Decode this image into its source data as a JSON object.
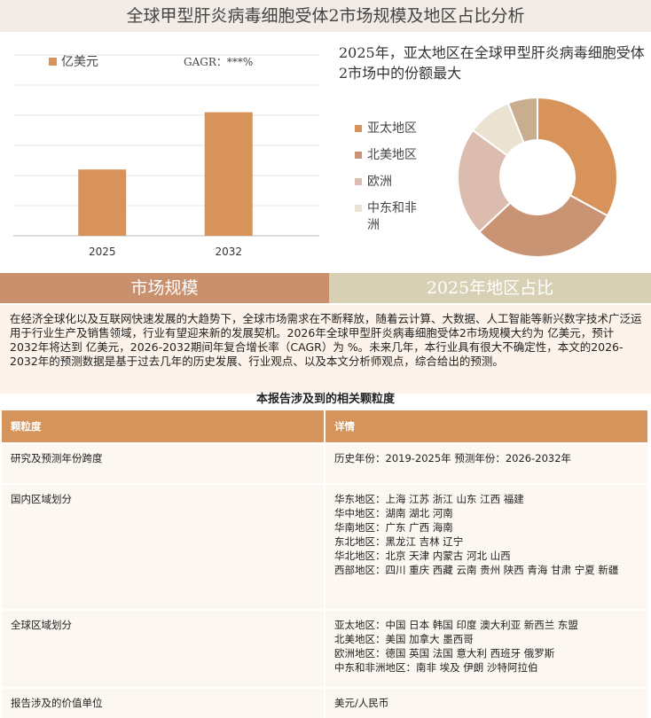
{
  "header": {
    "title": "全球甲型肝炎病毒细胞受体2市场规模及地区占比分析"
  },
  "chart_data": [
    {
      "type": "bar",
      "annotation": "GAGR：***%",
      "categories": [
        "2025",
        "2032"
      ],
      "series": [
        {
          "name": "亿美元",
          "color": "#d8935a",
          "values": [
            2.2,
            4.1
          ]
        }
      ],
      "ylim": [
        0,
        6
      ],
      "grid": true
    },
    {
      "type": "pie",
      "title": "2025年，亚太地区在全球甲型肝炎病毒细胞受体2市场中的份额最大",
      "categories": [
        "亚太地区",
        "北美地区",
        "欧洲",
        "中东和非洲",
        null
      ],
      "values": [
        33,
        30,
        22,
        9,
        6
      ],
      "colors": [
        "#d8935a",
        "#c99474",
        "#dcbcae",
        "#ebe2d2",
        "#c9ad8e"
      ]
    }
  ],
  "sections": [
    "市场规模",
    "2025年地区占比"
  ],
  "paragraph": "在经济全球化以及互联网快速发展的大趋势下，全球市场需求在不断释放，随着云计算、大数据、人工智能等新兴数字技术广泛运用于行业生产及销售领域，行业有望迎来新的发展契机。2026年全球甲型肝炎病毒细胞受体2市场规模大约为 亿美元，预计2032年将达到 亿美元，2026-2032期间年复合增长率（CAGR）为 %。未来几年，本行业具有很大不确定性，本文的2026-2032年的预测数据是基于过去几年的历史发展、行业观点、以及本文分析师观点，综合给出的预测。",
  "table": {
    "title": "本报告涉及到的相关颗粒度",
    "headers": [
      "颗粒度",
      "详情"
    ],
    "rows": [
      [
        "研究及预测年份跨度",
        [
          "历史年份：2019-2025年 预测年份：2026-2032年"
        ]
      ],
      [
        "国内区域划分",
        [
          "华东地区：上海  江苏  浙江  山东  江西  福建",
          "华中地区：湖南  湖北  河南",
          "华南地区：广东  广西  海南",
          "东北地区：黑龙江  吉林  辽宁",
          "华北地区：北京  天津  内蒙古  河北  山西",
          "西部地区：四川  重庆  西藏  云南  贵州  陕西  青海  甘肃  宁夏  新疆"
        ]
      ],
      [
        "全球区域划分",
        [
          "亚太地区：中国  日本  韩国  印度  澳大利亚  新西兰  东盟",
          "北美地区：美国  加拿大  墨西哥",
          "欧洲地区：德国  英国  法国  意大利  西班牙  俄罗斯",
          "中东和非洲地区：南非  埃及  伊朗  沙特阿拉伯"
        ]
      ],
      [
        "报告涉及的价值单位",
        [
          "美元/人民币"
        ]
      ]
    ]
  }
}
